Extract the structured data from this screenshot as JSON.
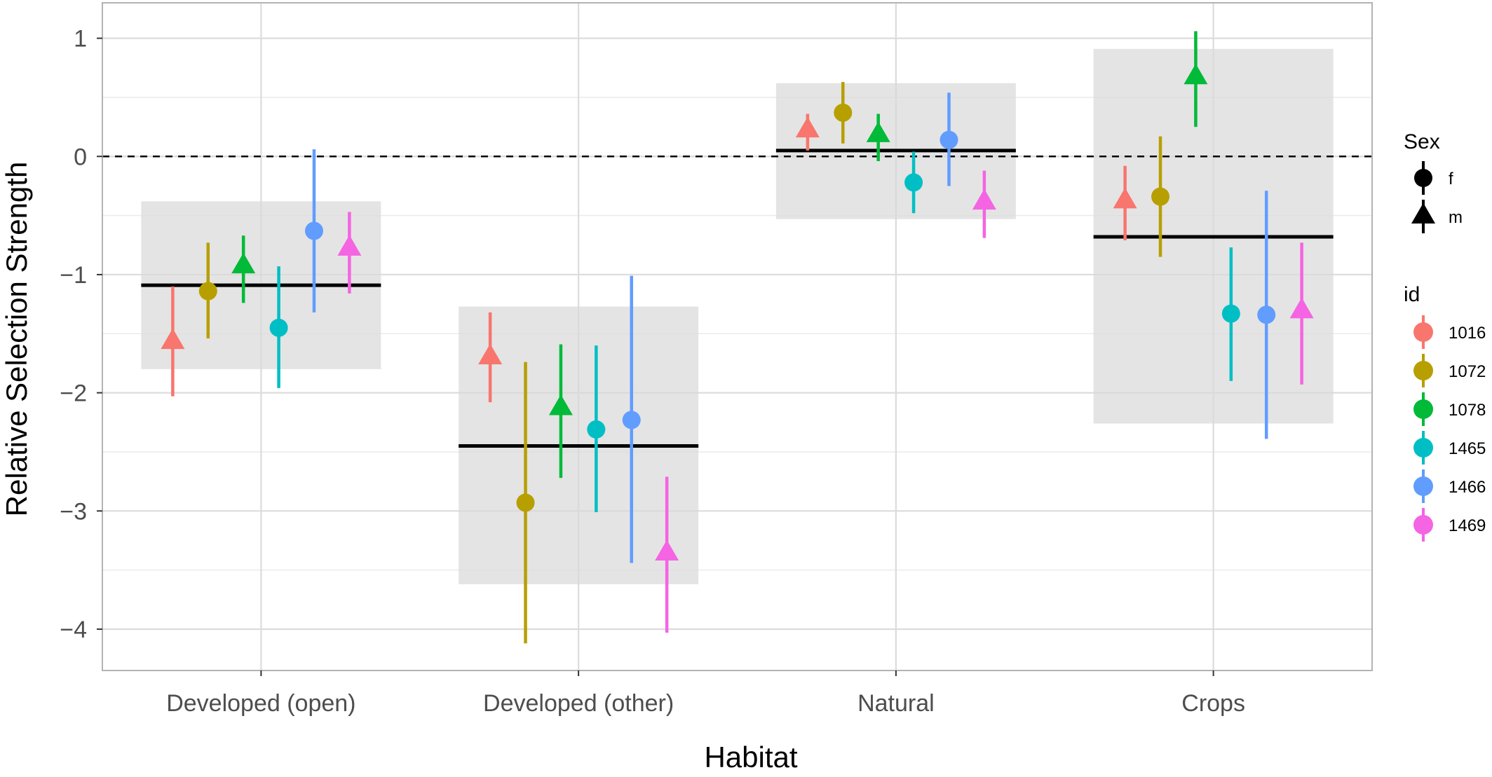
{
  "chart_data": {
    "type": "scatter",
    "subtype": "point-range with summary bands",
    "xlabel": "Habitat",
    "ylabel": "Relative Selection Strength",
    "categories": [
      "Developed (open)",
      "Developed (other)",
      "Natural",
      "Crops"
    ],
    "ylim": [
      -4.35,
      1.3
    ],
    "yticks": [
      1,
      0,
      -1,
      -2,
      -3,
      -4
    ],
    "ytick_labels": [
      "1",
      "0",
      "−1",
      "−2",
      "−3",
      "−4"
    ],
    "reference_line": {
      "y": 0,
      "style": "dashed"
    },
    "grid": true,
    "summary": [
      {
        "category": "Developed (open)",
        "mean": -1.09,
        "lower": -1.8,
        "upper": -0.38
      },
      {
        "category": "Developed (other)",
        "mean": -2.45,
        "lower": -3.62,
        "upper": -1.27
      },
      {
        "category": "Natural",
        "mean": 0.05,
        "lower": -0.53,
        "upper": 0.62
      },
      {
        "category": "Crops",
        "mean": -0.68,
        "lower": -2.26,
        "upper": 0.91
      }
    ],
    "ids": [
      "1016",
      "1072",
      "1078",
      "1465",
      "1466",
      "1469"
    ],
    "id_colors": {
      "1016": "#F8766D",
      "1072": "#B79F00",
      "1078": "#00BA38",
      "1465": "#00BFC4",
      "1466": "#619CFF",
      "1469": "#F564E3"
    },
    "id_sex": {
      "1016": "m",
      "1072": "f",
      "1078": "m",
      "1465": "f",
      "1466": "f",
      "1469": "m"
    },
    "sex_levels": [
      "f",
      "m"
    ],
    "sex_shapes": {
      "f": "circle",
      "m": "triangle"
    },
    "legend": {
      "sex_title": "Sex",
      "id_title": "id",
      "placement": "right"
    },
    "series": [
      {
        "id": "1016",
        "values": [
          -1.57,
          -1.7,
          0.22,
          -0.38
        ],
        "lower": [
          -2.03,
          -2.08,
          0.05,
          -0.71
        ],
        "upper": [
          -1.1,
          -1.32,
          0.36,
          -0.08
        ]
      },
      {
        "id": "1072",
        "values": [
          -1.14,
          -2.93,
          0.37,
          -0.34
        ],
        "lower": [
          -1.54,
          -4.12,
          0.11,
          -0.85
        ],
        "upper": [
          -0.73,
          -1.74,
          0.63,
          0.17
        ]
      },
      {
        "id": "1078",
        "values": [
          -0.93,
          -2.13,
          0.18,
          0.67
        ],
        "lower": [
          -1.24,
          -2.72,
          -0.04,
          0.25
        ],
        "upper": [
          -0.67,
          -1.59,
          0.36,
          1.06
        ]
      },
      {
        "id": "1465",
        "values": [
          -1.45,
          -2.31,
          -0.22,
          -1.33
        ],
        "lower": [
          -1.96,
          -3.01,
          -0.48,
          -1.9
        ],
        "upper": [
          -0.93,
          -1.6,
          0.04,
          -0.77
        ]
      },
      {
        "id": "1466",
        "values": [
          -0.63,
          -2.23,
          0.14,
          -1.34
        ],
        "lower": [
          -1.32,
          -3.44,
          -0.25,
          -2.39
        ],
        "upper": [
          0.06,
          -1.01,
          0.54,
          -0.29
        ]
      },
      {
        "id": "1469",
        "values": [
          -0.78,
          -3.36,
          -0.39,
          -1.31
        ],
        "lower": [
          -1.16,
          -4.03,
          -0.69,
          -1.93
        ],
        "upper": [
          -0.47,
          -2.71,
          -0.12,
          -0.73
        ]
      }
    ]
  }
}
